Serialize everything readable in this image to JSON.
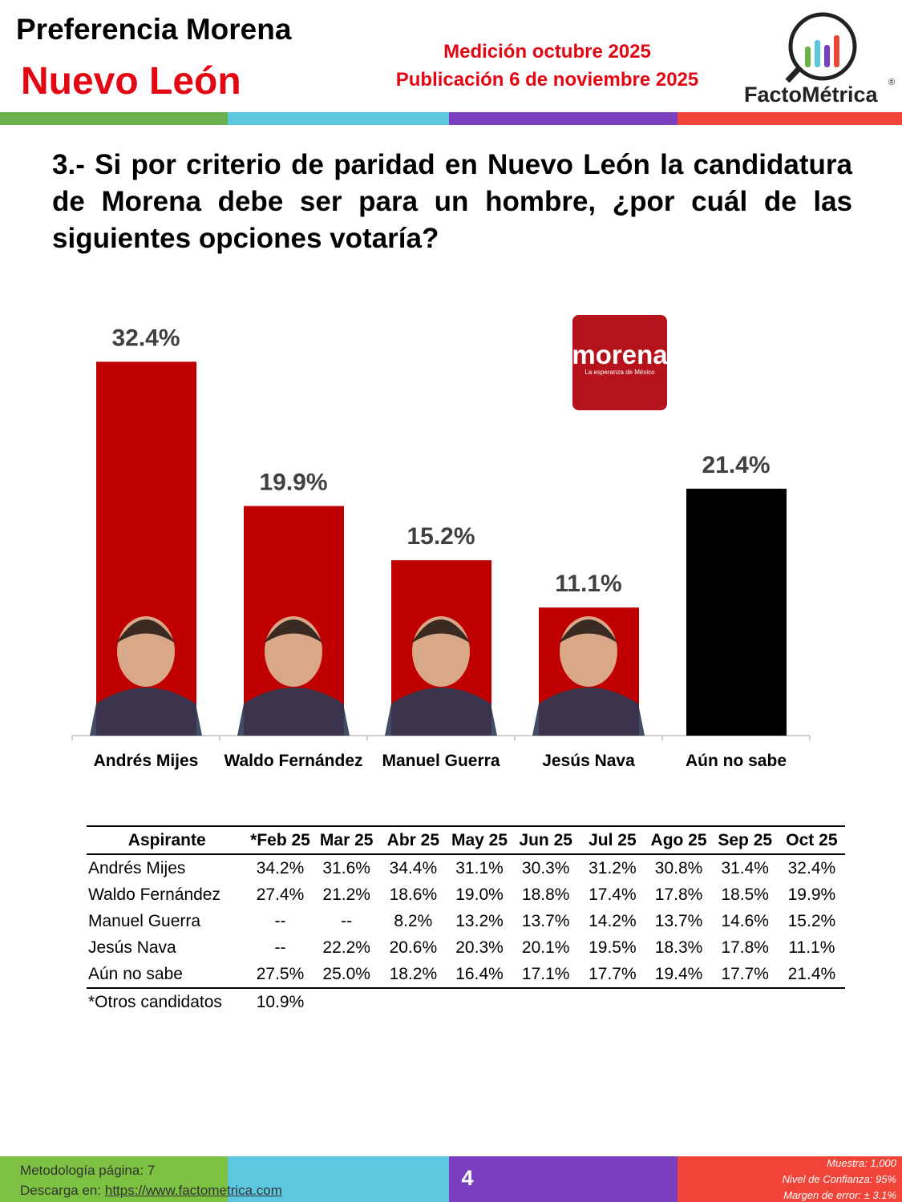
{
  "header": {
    "title": "Preferencia Morena",
    "subtitle": "Nuevo León",
    "measurement": "Medición octubre 2025",
    "publication": "Publicación 6 de noviembre 2025",
    "brand": "FactoMétrica",
    "registered": "®"
  },
  "question": "3.- Si por criterio de paridad en Nuevo León la candidatura de Morena debe ser para un hombre, ¿por cuál de las siguientes opciones votaría?",
  "logo": {
    "name": "morena",
    "tagline": "La esperanza de México"
  },
  "chart_data": {
    "type": "bar",
    "categories": [
      "Andrés Mijes",
      "Waldo Fernández",
      "Manuel Guerra",
      "Jesús Nava",
      "Aún no sabe"
    ],
    "values": [
      32.4,
      19.9,
      15.2,
      11.1,
      21.4
    ],
    "value_labels": [
      "32.4%",
      "19.9%",
      "15.2%",
      "11.1%",
      "21.4%"
    ],
    "colors": [
      "#c00000",
      "#c00000",
      "#c00000",
      "#c00000",
      "#000000"
    ],
    "ylim": [
      0,
      35
    ]
  },
  "table": {
    "columns": [
      "Aspirante",
      "*Feb 25",
      "Mar 25",
      "Abr 25",
      "May 25",
      "Jun 25",
      "Jul 25",
      "Ago 25",
      "Sep 25",
      "Oct 25"
    ],
    "rows": [
      [
        "Andrés Mijes",
        "34.2%",
        "31.6%",
        "34.4%",
        "31.1%",
        "30.3%",
        "31.2%",
        "30.8%",
        "31.4%",
        "32.4%"
      ],
      [
        "Waldo Fernández",
        "27.4%",
        "21.2%",
        "18.6%",
        "19.0%",
        "18.8%",
        "17.4%",
        "17.8%",
        "18.5%",
        "19.9%"
      ],
      [
        "Manuel Guerra",
        "--",
        "--",
        "8.2%",
        "13.2%",
        "13.7%",
        "14.2%",
        "13.7%",
        "14.6%",
        "15.2%"
      ],
      [
        "Jesús Nava",
        "--",
        "22.2%",
        "20.6%",
        "20.3%",
        "20.1%",
        "19.5%",
        "18.3%",
        "17.8%",
        "11.1%"
      ],
      [
        "Aún no sabe",
        "27.5%",
        "25.0%",
        "18.2%",
        "16.4%",
        "17.1%",
        "17.7%",
        "19.4%",
        "17.7%",
        "21.4%"
      ]
    ],
    "footnote": [
      "*Otros candidatos",
      "10.9%"
    ]
  },
  "footer": {
    "methodology": "Metodología página: 7",
    "download": "Descarga en:",
    "url": "https://www.factometrica.com",
    "page": "4",
    "sample": "Muestra:  1,000",
    "confidence": "Nivel de Confianza: 95%",
    "error": "Margen de error: ± 3.1%"
  }
}
